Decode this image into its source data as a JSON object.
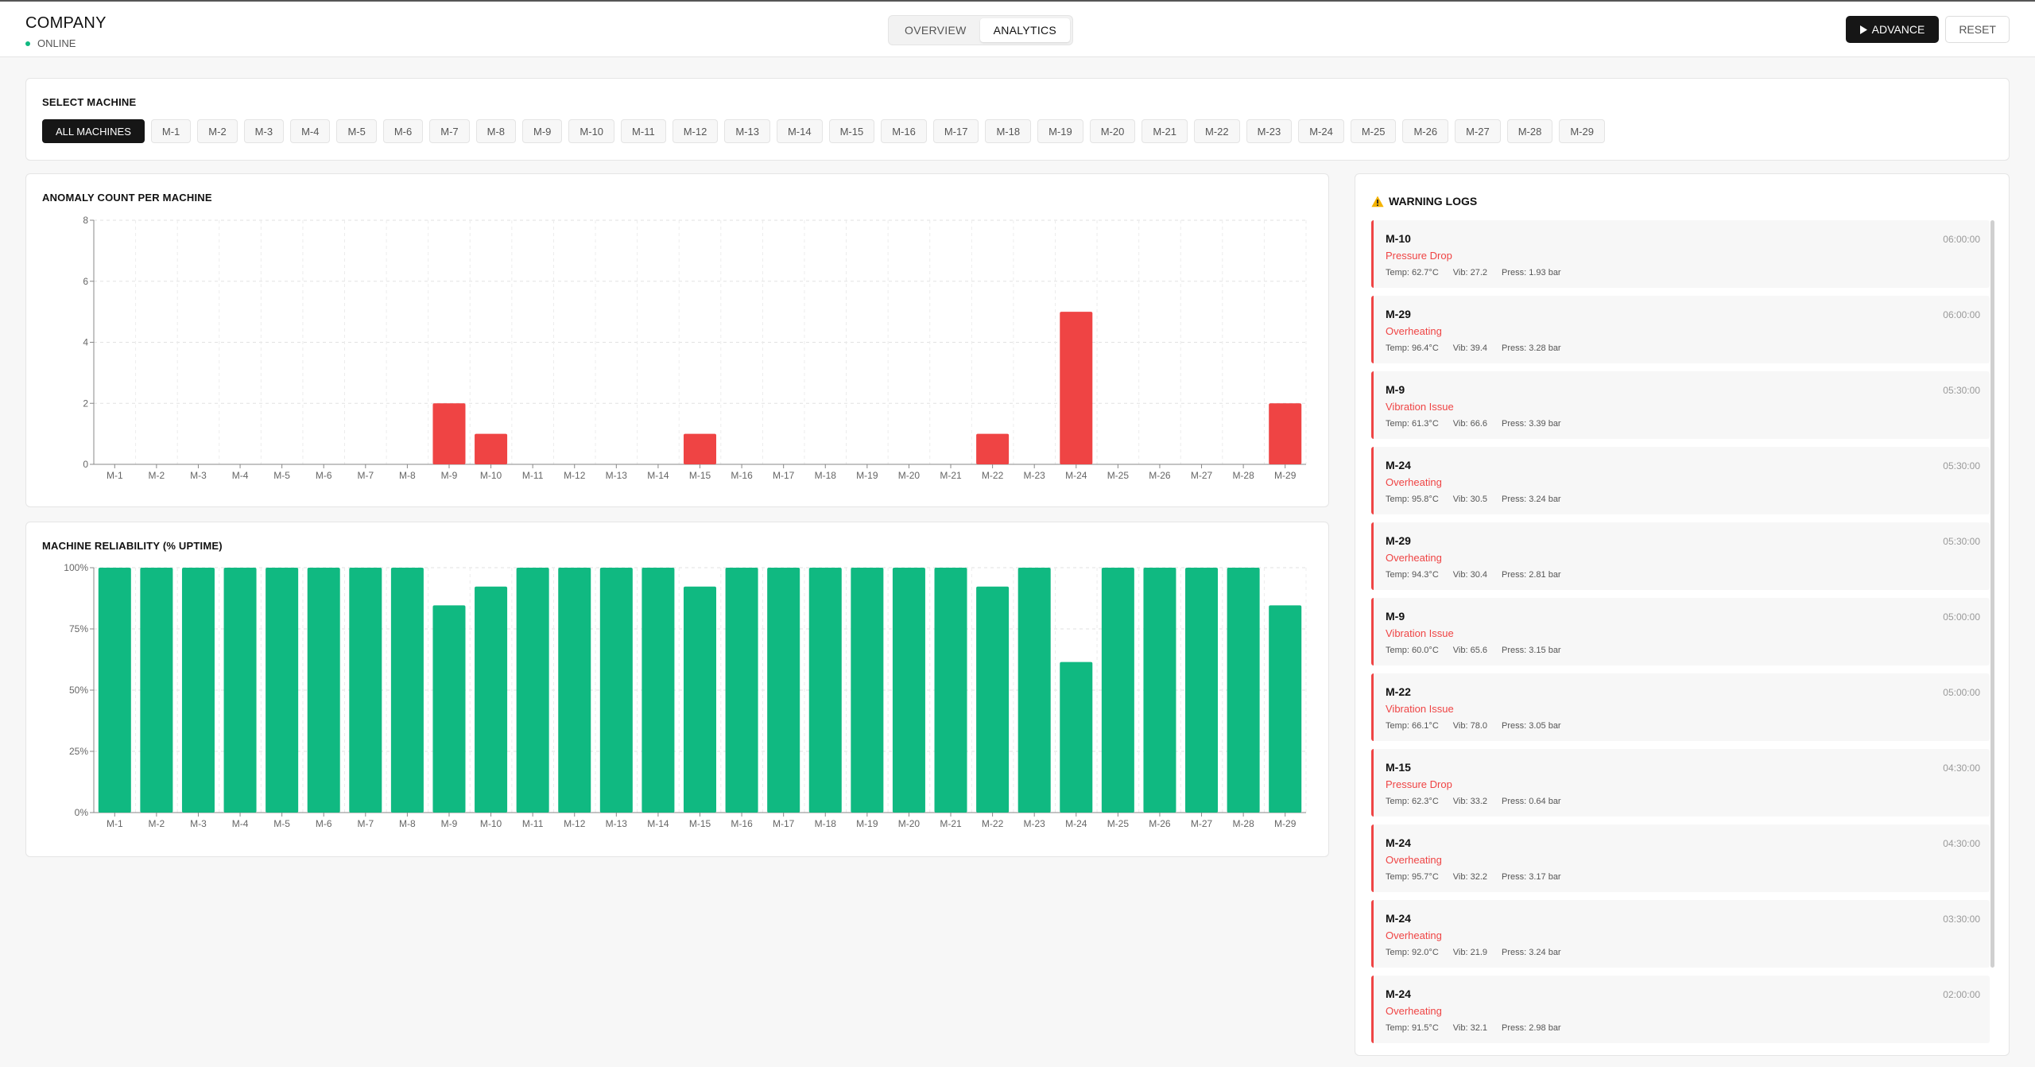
{
  "header": {
    "company": "COMPANY",
    "status": "ONLINE",
    "tabs": [
      "OVERVIEW",
      "ANALYTICS"
    ],
    "active_tab": "ANALYTICS",
    "advance_label": "ADVANCE",
    "reset_label": "RESET"
  },
  "select": {
    "title": "SELECT MACHINE",
    "all_label": "ALL MACHINES",
    "machines": [
      "M-1",
      "M-2",
      "M-3",
      "M-4",
      "M-5",
      "M-6",
      "M-7",
      "M-8",
      "M-9",
      "M-10",
      "M-11",
      "M-12",
      "M-13",
      "M-14",
      "M-15",
      "M-16",
      "M-17",
      "M-18",
      "M-19",
      "M-20",
      "M-21",
      "M-22",
      "M-23",
      "M-24",
      "M-25",
      "M-26",
      "M-27",
      "M-28",
      "M-29"
    ]
  },
  "chart_data": [
    {
      "type": "bar",
      "title": "ANOMALY COUNT PER MACHINE",
      "categories": [
        "M-1",
        "M-2",
        "M-3",
        "M-4",
        "M-5",
        "M-6",
        "M-7",
        "M-8",
        "M-9",
        "M-10",
        "M-11",
        "M-12",
        "M-13",
        "M-14",
        "M-15",
        "M-16",
        "M-17",
        "M-18",
        "M-19",
        "M-20",
        "M-21",
        "M-22",
        "M-23",
        "M-24",
        "M-25",
        "M-26",
        "M-27",
        "M-28",
        "M-29"
      ],
      "values": [
        0,
        0,
        0,
        0,
        0,
        0,
        0,
        0,
        2,
        1,
        0,
        0,
        0,
        0,
        1,
        0,
        0,
        0,
        0,
        0,
        0,
        1,
        0,
        5,
        0,
        0,
        0,
        0,
        2
      ],
      "ylim": [
        0,
        8
      ],
      "yticks": [
        "0",
        "2",
        "4",
        "6",
        "8"
      ],
      "grid": true,
      "color": "#ef4444"
    },
    {
      "type": "bar",
      "title": "MACHINE RELIABILITY (% UPTIME)",
      "categories": [
        "M-1",
        "M-2",
        "M-3",
        "M-4",
        "M-5",
        "M-6",
        "M-7",
        "M-8",
        "M-9",
        "M-10",
        "M-11",
        "M-12",
        "M-13",
        "M-14",
        "M-15",
        "M-16",
        "M-17",
        "M-18",
        "M-19",
        "M-20",
        "M-21",
        "M-22",
        "M-23",
        "M-24",
        "M-25",
        "M-26",
        "M-27",
        "M-28",
        "M-29"
      ],
      "values": [
        100,
        100,
        100,
        100,
        100,
        100,
        100,
        100,
        84.6,
        92.3,
        100,
        100,
        100,
        100,
        92.3,
        100,
        100,
        100,
        100,
        100,
        100,
        92.3,
        100,
        61.5,
        100,
        100,
        100,
        100,
        84.6
      ],
      "ylim": [
        0,
        100
      ],
      "yticks": [
        "0%",
        "25%",
        "50%",
        "75%",
        "100%"
      ],
      "grid": true,
      "color": "#10b981"
    }
  ],
  "logs": {
    "title": "WARNING LOGS",
    "icon": "warning-icon",
    "items": [
      {
        "machine": "M-10",
        "time": "06:00:00",
        "type": "Pressure Drop",
        "temp": "Temp: 62.7°C",
        "vib": "Vib: 27.2",
        "press": "Press: 1.93 bar"
      },
      {
        "machine": "M-29",
        "time": "06:00:00",
        "type": "Overheating",
        "temp": "Temp: 96.4°C",
        "vib": "Vib: 39.4",
        "press": "Press: 3.28 bar"
      },
      {
        "machine": "M-9",
        "time": "05:30:00",
        "type": "Vibration Issue",
        "temp": "Temp: 61.3°C",
        "vib": "Vib: 66.6",
        "press": "Press: 3.39 bar"
      },
      {
        "machine": "M-24",
        "time": "05:30:00",
        "type": "Overheating",
        "temp": "Temp: 95.8°C",
        "vib": "Vib: 30.5",
        "press": "Press: 3.24 bar"
      },
      {
        "machine": "M-29",
        "time": "05:30:00",
        "type": "Overheating",
        "temp": "Temp: 94.3°C",
        "vib": "Vib: 30.4",
        "press": "Press: 2.81 bar"
      },
      {
        "machine": "M-9",
        "time": "05:00:00",
        "type": "Vibration Issue",
        "temp": "Temp: 60.0°C",
        "vib": "Vib: 65.6",
        "press": "Press: 3.15 bar"
      },
      {
        "machine": "M-22",
        "time": "05:00:00",
        "type": "Vibration Issue",
        "temp": "Temp: 66.1°C",
        "vib": "Vib: 78.0",
        "press": "Press: 3.05 bar"
      },
      {
        "machine": "M-15",
        "time": "04:30:00",
        "type": "Pressure Drop",
        "temp": "Temp: 62.3°C",
        "vib": "Vib: 33.2",
        "press": "Press: 0.64 bar"
      },
      {
        "machine": "M-24",
        "time": "04:30:00",
        "type": "Overheating",
        "temp": "Temp: 95.7°C",
        "vib": "Vib: 32.2",
        "press": "Press: 3.17 bar"
      },
      {
        "machine": "M-24",
        "time": "03:30:00",
        "type": "Overheating",
        "temp": "Temp: 92.0°C",
        "vib": "Vib: 21.9",
        "press": "Press: 3.24 bar"
      },
      {
        "machine": "M-24",
        "time": "02:00:00",
        "type": "Overheating",
        "temp": "Temp: 91.5°C",
        "vib": "Vib: 32.1",
        "press": "Press: 2.98 bar"
      }
    ]
  }
}
